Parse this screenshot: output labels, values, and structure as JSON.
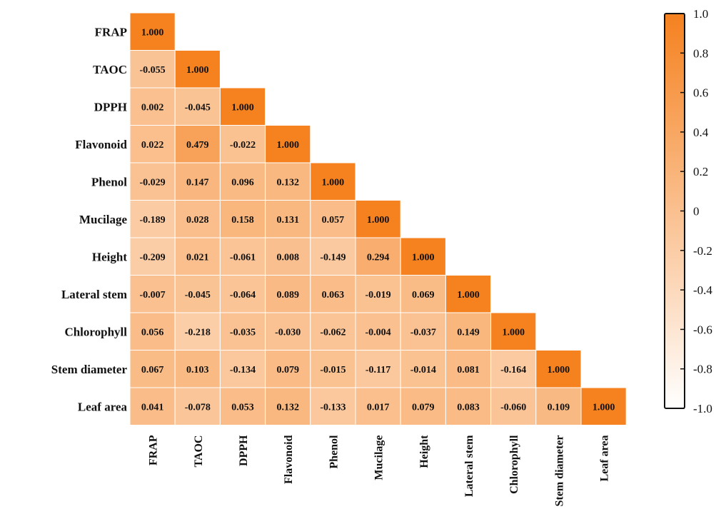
{
  "chart_data": {
    "type": "heatmap",
    "variables": [
      "FRAP",
      "TAOC",
      "DPPH",
      "Flavonoid",
      "Phenol",
      "Mucilage",
      "Height",
      "Lateral stem",
      "Chlorophyll",
      "Stem diameter",
      "Leaf area"
    ],
    "lower_triangle": true,
    "matrix": [
      [
        "1.000"
      ],
      [
        "-0.055",
        "1.000"
      ],
      [
        "0.002",
        "-0.045",
        "1.000"
      ],
      [
        "0.022",
        "0.479",
        "-0.022",
        "1.000"
      ],
      [
        "-0.029",
        "0.147",
        "0.096",
        "0.132",
        "1.000"
      ],
      [
        "-0.189",
        "0.028",
        "0.158",
        "0.131",
        "0.057",
        "1.000"
      ],
      [
        "-0.209",
        "0.021",
        "-0.061",
        "0.008",
        "-0.149",
        "0.294",
        "1.000"
      ],
      [
        "-0.007",
        "-0.045",
        "-0.064",
        "0.089",
        "0.063",
        "-0.019",
        "0.069",
        "1.000"
      ],
      [
        "0.056",
        "-0.218",
        "-0.035",
        "-0.030",
        "-0.062",
        "-0.004",
        "-0.037",
        "0.149",
        "1.000"
      ],
      [
        "0.067",
        "0.103",
        "-0.134",
        "0.079",
        "-0.015",
        "-0.117",
        "-0.014",
        "0.081",
        "-0.164",
        "1.000"
      ],
      [
        "0.041",
        "-0.078",
        "0.053",
        "0.132",
        "-0.133",
        "0.017",
        "0.079",
        "0.083",
        "-0.060",
        "0.109",
        "1.000"
      ]
    ],
    "colorbar": {
      "min": -1.0,
      "max": 1.0,
      "tick_labels": [
        "1.0",
        "0.8",
        "0.6",
        "0.4",
        "0.2",
        "0",
        "-0.2",
        "-0.4",
        "-0.6",
        "-0.8",
        "-1.0"
      ],
      "color_low": "#ffffff",
      "color_high": "#f5811f"
    }
  }
}
